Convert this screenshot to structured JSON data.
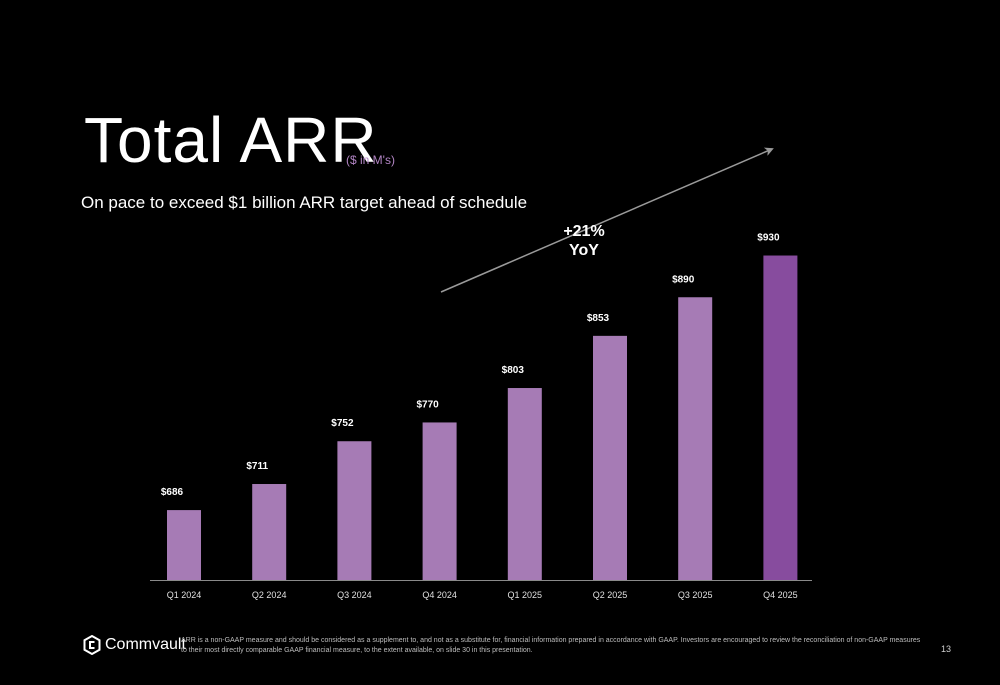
{
  "slide": {
    "title": "Total ARR",
    "title_unit": "($ in M's)",
    "subtitle": "On pace to exceed $1 billion ARR target ahead of schedule",
    "callout_line1": "+21%",
    "callout_line2": "YoY",
    "logo_text": "Commvault",
    "footnote_line1": "ARR is a non-GAAP measure and should be considered as a supplement to, and not as a substitute for, financial information prepared in accordance with GAAP. Investors are encouraged to review the reconciliation of non-GAAP measures",
    "footnote_line2": "to their most directly comparable GAAP financial measure, to the extent available, on slide 30 in this presentation.",
    "page_number": "13"
  },
  "chart_data": {
    "type": "bar",
    "categories": [
      "Q1 2024",
      "Q2 2024",
      "Q3 2024",
      "Q4 2024",
      "Q1 2025",
      "Q2 2025",
      "Q3 2025",
      "Q4 2025"
    ],
    "values": [
      686,
      711,
      752,
      770,
      803,
      853,
      890,
      930
    ],
    "data_labels": [
      "$686",
      "$711",
      "$752",
      "$770",
      "$803",
      "$853",
      "$890",
      "$930"
    ],
    "ylim": [
      619,
      965
    ],
    "grid": false,
    "legend": "none",
    "bar_color": "#a67bb5",
    "highlight_color": "#874c9e"
  }
}
